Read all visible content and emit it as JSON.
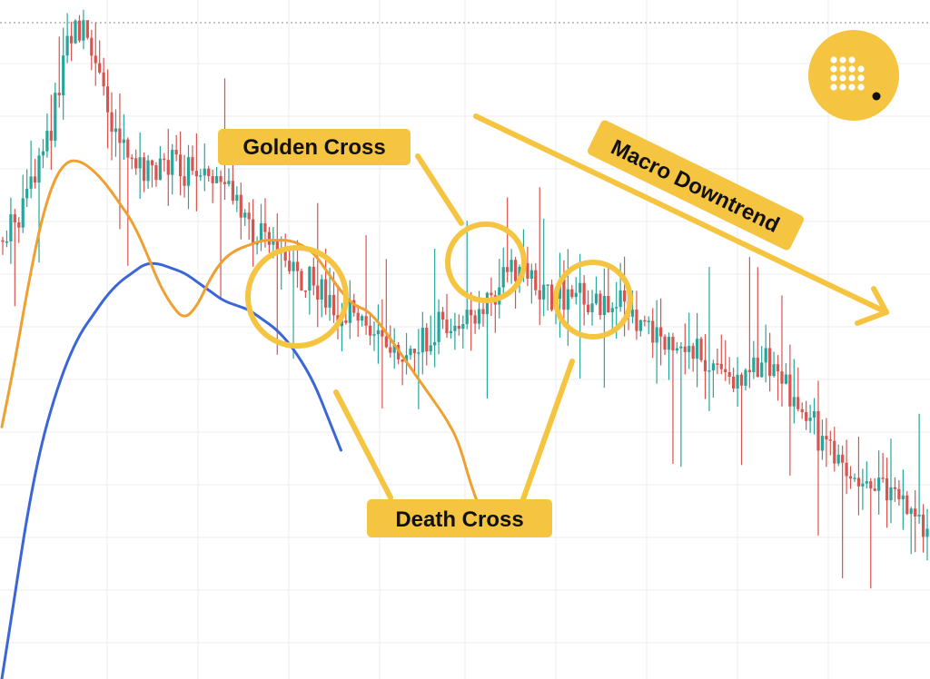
{
  "chart_data": {
    "type": "candlestick",
    "title": "",
    "xlabel": "",
    "ylabel": "",
    "grid": true,
    "colors": {
      "up": "#26a69a",
      "down": "#d9534f",
      "fast_ma": "#f0a030",
      "slow_ma": "#3a66d6",
      "annotation": "#f5c542"
    },
    "price_path": [
      [
        0,
        46
      ],
      [
        1,
        42
      ],
      [
        2,
        36
      ],
      [
        3,
        28
      ],
      [
        4,
        18
      ],
      [
        5,
        4
      ],
      [
        6,
        0
      ],
      [
        7,
        8
      ],
      [
        8,
        18
      ],
      [
        9,
        24
      ],
      [
        10,
        28
      ],
      [
        11,
        32
      ],
      [
        12,
        30
      ],
      [
        13,
        29
      ],
      [
        14,
        31
      ],
      [
        15,
        30
      ],
      [
        16,
        33
      ],
      [
        17,
        36
      ],
      [
        18,
        40
      ],
      [
        19,
        44
      ],
      [
        20,
        46
      ],
      [
        21,
        49
      ],
      [
        22,
        52
      ],
      [
        23,
        55
      ],
      [
        24,
        57
      ],
      [
        25,
        59
      ],
      [
        26,
        61
      ],
      [
        27,
        63
      ],
      [
        28,
        64
      ],
      [
        29,
        67
      ],
      [
        30,
        70
      ],
      [
        31,
        71
      ],
      [
        32,
        69
      ],
      [
        33,
        66
      ],
      [
        34,
        64
      ],
      [
        35,
        63
      ],
      [
        36,
        66
      ],
      [
        37,
        61
      ],
      [
        38,
        55
      ],
      [
        39,
        52
      ],
      [
        40,
        51
      ],
      [
        41,
        56
      ],
      [
        42,
        59
      ],
      [
        43,
        58
      ],
      [
        44,
        56
      ],
      [
        45,
        59
      ],
      [
        46,
        60
      ],
      [
        47,
        58
      ],
      [
        48,
        62
      ],
      [
        49,
        65
      ],
      [
        50,
        66
      ],
      [
        51,
        70
      ],
      [
        52,
        69
      ],
      [
        53,
        68
      ],
      [
        54,
        73
      ],
      [
        55,
        75
      ],
      [
        56,
        76
      ],
      [
        57,
        76
      ],
      [
        58,
        74
      ],
      [
        59,
        73
      ],
      [
        60,
        76
      ],
      [
        61,
        82
      ],
      [
        62,
        84
      ],
      [
        63,
        89
      ],
      [
        64,
        92
      ],
      [
        65,
        97
      ],
      [
        66,
        100
      ],
      [
        67,
        101
      ],
      [
        68,
        99
      ],
      [
        69,
        102
      ],
      [
        70,
        106
      ],
      [
        71,
        110
      ]
    ],
    "fast_ma_path": [
      [
        0,
        86
      ],
      [
        1,
        72
      ],
      [
        2,
        56
      ],
      [
        3,
        42
      ],
      [
        4,
        33
      ],
      [
        5,
        29
      ],
      [
        6,
        29
      ],
      [
        7,
        31
      ],
      [
        8,
        34
      ],
      [
        9,
        38
      ],
      [
        10,
        42
      ],
      [
        11,
        48
      ],
      [
        12,
        55
      ],
      [
        13,
        60
      ],
      [
        14,
        63
      ],
      [
        15,
        60
      ],
      [
        16,
        54
      ],
      [
        17,
        50
      ],
      [
        18,
        48
      ],
      [
        19,
        47
      ],
      [
        20,
        46
      ],
      [
        21,
        46
      ],
      [
        22,
        46
      ],
      [
        23,
        47
      ],
      [
        24,
        49
      ],
      [
        25,
        53
      ],
      [
        26,
        57
      ],
      [
        27,
        60
      ],
      [
        28,
        61
      ],
      [
        29,
        64
      ],
      [
        30,
        68
      ],
      [
        31,
        72
      ],
      [
        32,
        76
      ],
      [
        33,
        80
      ],
      [
        34,
        84
      ],
      [
        35,
        89
      ],
      [
        36,
        99
      ],
      [
        37,
        106
      ]
    ],
    "slow_ma_path": [
      [
        0,
        140
      ],
      [
        1,
        122
      ],
      [
        2,
        104
      ],
      [
        3,
        90
      ],
      [
        4,
        80
      ],
      [
        5,
        72
      ],
      [
        6,
        66
      ],
      [
        7,
        62
      ],
      [
        8,
        58
      ],
      [
        9,
        55
      ],
      [
        10,
        53
      ],
      [
        11,
        51
      ],
      [
        12,
        51
      ],
      [
        13,
        52
      ],
      [
        14,
        53
      ],
      [
        15,
        55
      ],
      [
        16,
        57
      ],
      [
        17,
        59
      ],
      [
        18,
        60
      ],
      [
        19,
        61
      ],
      [
        20,
        63
      ],
      [
        21,
        65
      ],
      [
        22,
        68
      ],
      [
        23,
        72
      ],
      [
        24,
        77
      ],
      [
        25,
        84
      ],
      [
        26,
        91
      ]
    ]
  },
  "annotations": {
    "golden_cross_label": "Golden Cross",
    "death_cross_label": "Death Cross",
    "macro_downtrend_label": "Macro Downtrend"
  },
  "logo": {
    "icon": "dot-grid-logo-icon",
    "color": "#f5c542"
  }
}
